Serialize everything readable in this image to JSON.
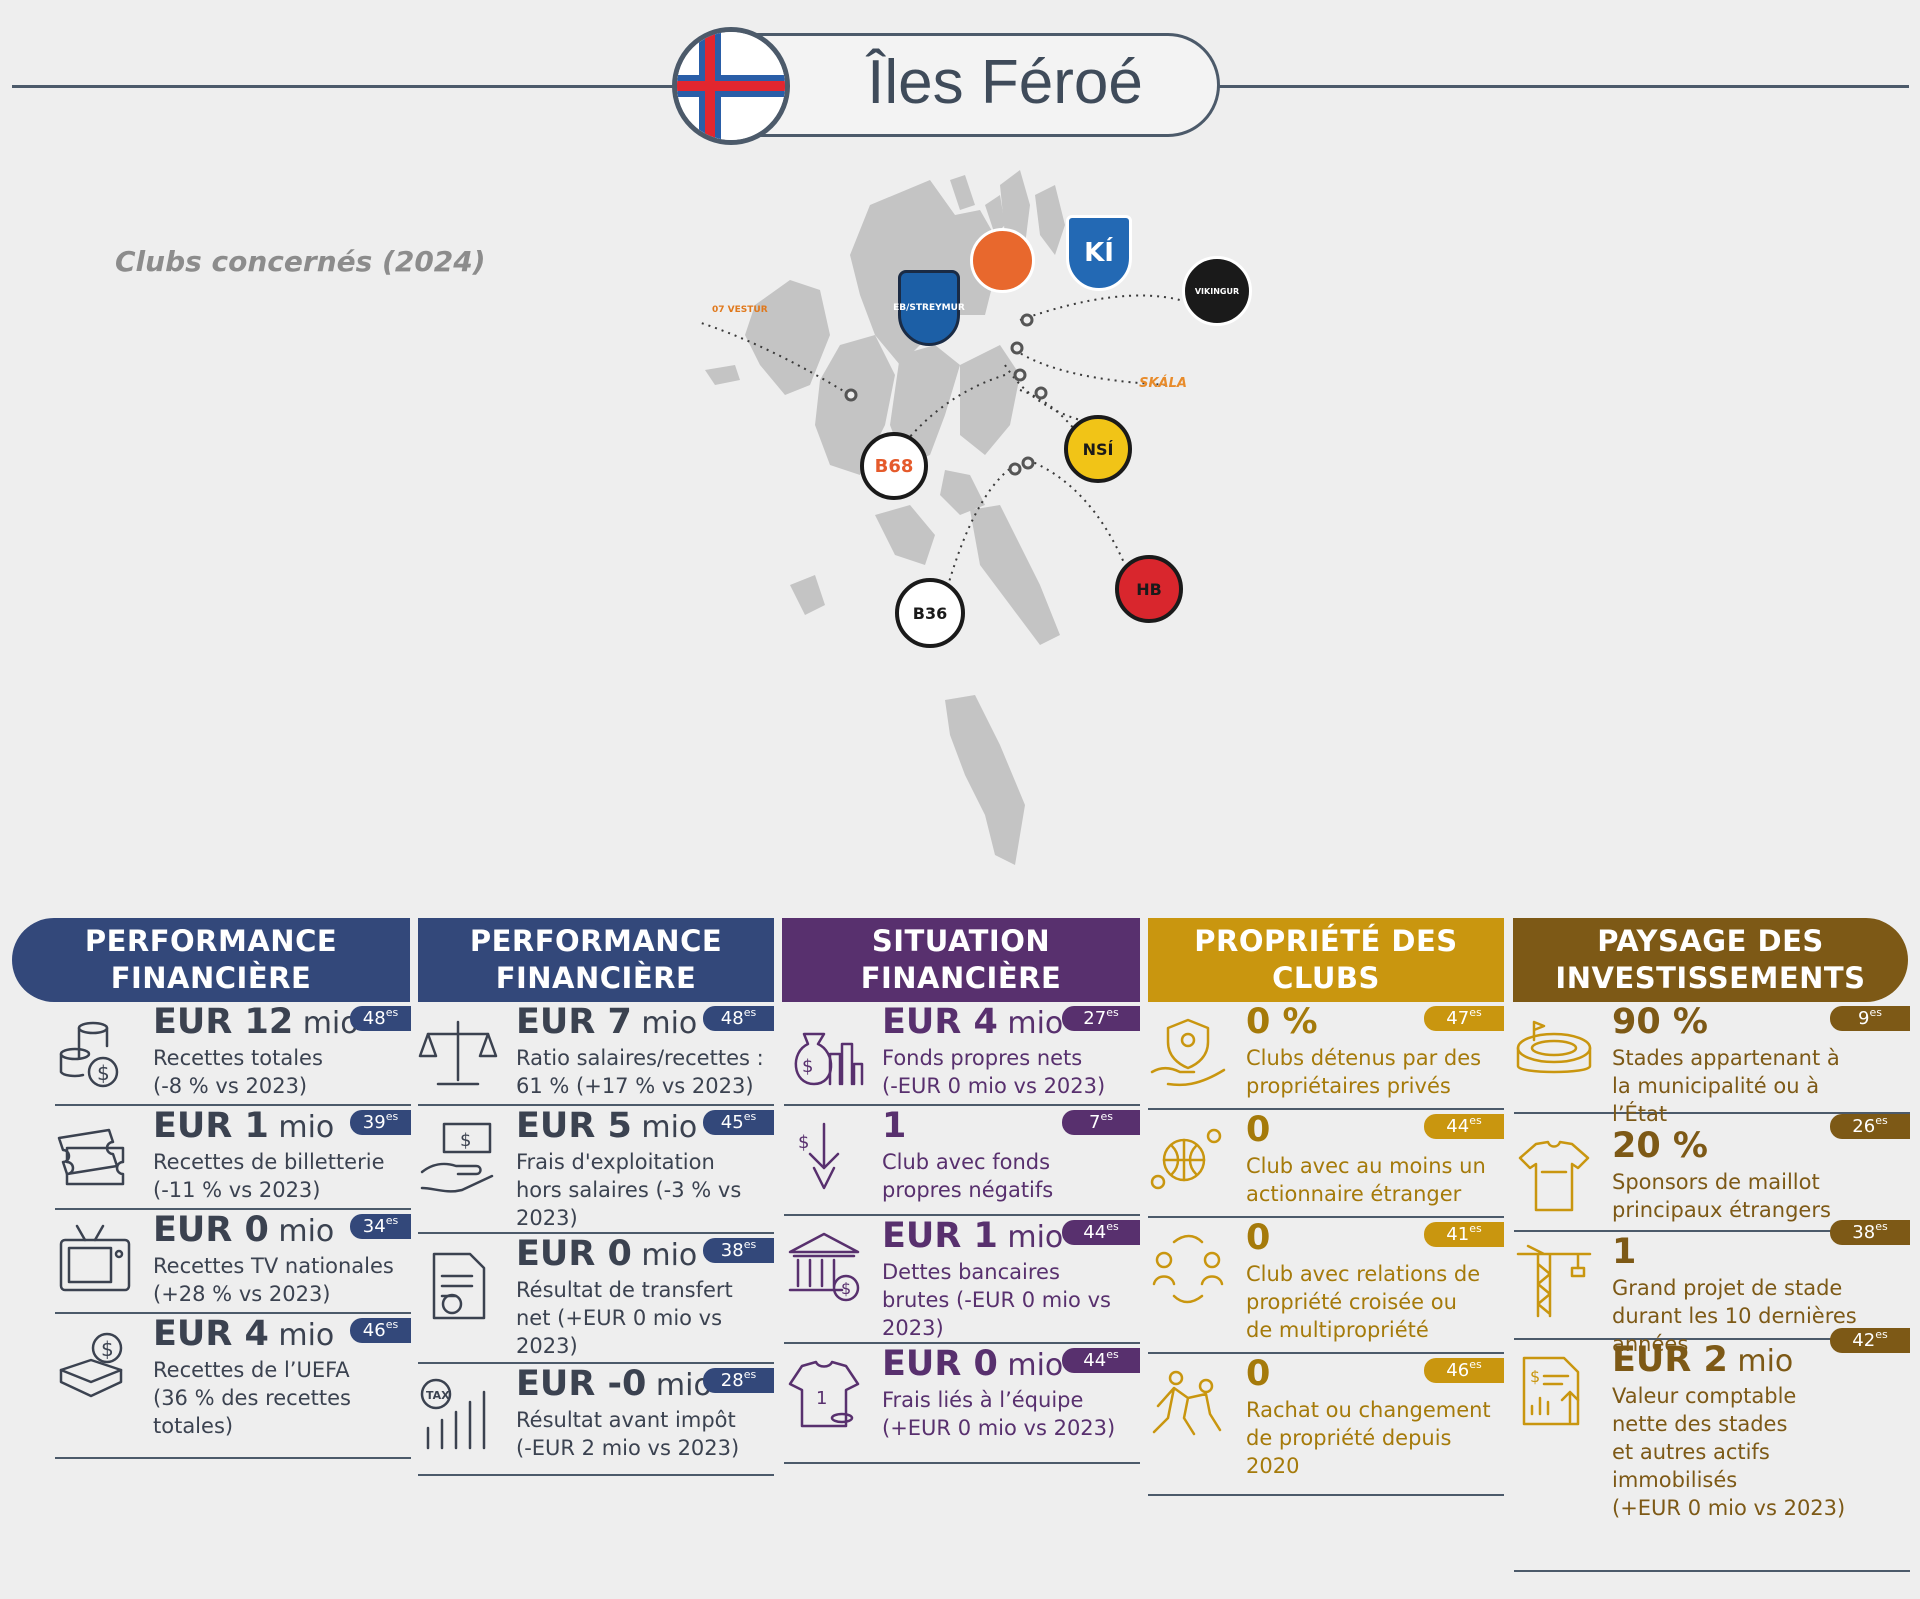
{
  "title": "Îles Féroé",
  "clubs_label": "Clubs concernés (2024)",
  "clubs": {
    "eb": "EB/STREYMUR",
    "ki": "KÍ",
    "vikingur": "VIKINGUR",
    "vestur": "07 VESTUR",
    "skala": "SKÁLA",
    "b68": "B68",
    "nsi": "NSÍ",
    "b36": "B36",
    "hb": "HB"
  },
  "colors": {
    "navy": "#33487a",
    "purple": "#58306e",
    "gold": "#c9960f",
    "brown": "#7d5916",
    "text": "#3b4250"
  },
  "columns": [
    {
      "header": [
        "PERFORMANCE",
        "FINANCIÈRE"
      ],
      "items": [
        {
          "icon": "coins-money-icon",
          "value": "EUR 12",
          "unit": " mio",
          "desc": [
            "Recettes totales",
            "(-8 % vs 2023)"
          ],
          "rank": "48",
          "sup": "es"
        },
        {
          "icon": "tickets-icon",
          "value": "EUR 1",
          "unit": " mio",
          "desc": [
            "Recettes de billetterie",
            "(-11 % vs 2023)"
          ],
          "rank": "39",
          "sup": "es"
        },
        {
          "icon": "television-icon",
          "value": "EUR 0",
          "unit": " mio",
          "desc": [
            "Recettes TV nationales",
            "(+28 % vs 2023)"
          ],
          "rank": "34",
          "sup": "es"
        },
        {
          "icon": "uefa-revenue-icon",
          "value": "EUR 4",
          "unit": " mio",
          "desc": [
            "Recettes de l’UEFA",
            "(36 % des recettes",
            "totales)"
          ],
          "rank": "46",
          "sup": "es"
        }
      ]
    },
    {
      "header": [
        "PERFORMANCE",
        "FINANCIÈRE"
      ],
      "items": [
        {
          "icon": "scale-icon",
          "value": "EUR 7",
          "unit": " mio",
          "desc": [
            "Ratio salaires/recettes :",
            "61 % (+17 % vs 2023)"
          ],
          "rank": "48",
          "sup": "es"
        },
        {
          "icon": "hand-money-icon",
          "value": "EUR 5",
          "unit": " mio",
          "desc": [
            "Frais d'exploitation",
            "hors salaires (-3 % vs",
            "2023)"
          ],
          "rank": "45",
          "sup": "es"
        },
        {
          "icon": "transfer-document-icon",
          "value": "EUR 0",
          "unit": " mio",
          "desc": [
            "Résultat de transfert",
            "net (+EUR 0 mio vs",
            "2023)"
          ],
          "rank": "38",
          "sup": "es"
        },
        {
          "icon": "tax-chart-icon",
          "value": "EUR -0",
          "unit": " mio",
          "desc": [
            "Résultat avant impôt",
            "(-EUR 2 mio vs 2023)"
          ],
          "rank": "28",
          "sup": "es"
        }
      ]
    },
    {
      "header": [
        "SITUATION",
        "FINANCIÈRE"
      ],
      "items": [
        {
          "icon": "money-bag-chart-icon",
          "value": "EUR 4",
          "unit": " mio",
          "desc": [
            "Fonds propres nets",
            "(-EUR 0 mio vs 2023)"
          ],
          "rank": "27",
          "sup": "es"
        },
        {
          "icon": "negative-equity-icon",
          "value": "1",
          "unit": "",
          "desc": [
            "Club avec fonds",
            "propres négatifs"
          ],
          "rank": "7",
          "sup": "es"
        },
        {
          "icon": "bank-icon",
          "value": "EUR 1",
          "unit": " mio",
          "desc": [
            "Dettes bancaires",
            "brutes (-EUR 0 mio vs",
            "2023)"
          ],
          "rank": "44",
          "sup": "es"
        },
        {
          "icon": "shirt-coins-icon",
          "value": "EUR 0",
          "unit": " mio",
          "desc": [
            "Frais liés à l’équipe",
            "(+EUR 0 mio vs 2023)"
          ],
          "rank": "44",
          "sup": "es"
        }
      ]
    },
    {
      "header": [
        "PROPRIÉTÉ DES",
        "CLUBS"
      ],
      "items": [
        {
          "icon": "private-ownership-icon",
          "value": "0 %",
          "unit": "",
          "desc": [
            "Clubs détenus par des",
            "propriétaires privés"
          ],
          "rank": "47",
          "sup": "es"
        },
        {
          "icon": "foreign-shareholder-icon",
          "value": "0",
          "unit": "",
          "desc": [
            "Club avec au moins un",
            "actionnaire étranger"
          ],
          "rank": "44",
          "sup": "es"
        },
        {
          "icon": "cross-ownership-icon",
          "value": "0",
          "unit": "",
          "desc": [
            "Club avec relations de",
            "propriété croisée ou",
            "de multipropriété"
          ],
          "rank": "41",
          "sup": "es"
        },
        {
          "icon": "ownership-change-icon",
          "value": "0",
          "unit": "",
          "desc": [
            "Rachat ou changement",
            "de propriété depuis",
            "2020"
          ],
          "rank": "46",
          "sup": "es"
        }
      ]
    },
    {
      "header": [
        "PAYSAGE DES",
        "INVESTISSEMENTS"
      ],
      "items": [
        {
          "icon": "stadium-icon",
          "value": "90 %",
          "unit": "",
          "desc": [
            "Stades appartenant à",
            "la municipalité ou à",
            "l’État"
          ],
          "rank": "9",
          "sup": "es"
        },
        {
          "icon": "jersey-icon",
          "value": "20 %",
          "unit": "",
          "desc": [
            "Sponsors de maillot",
            "principaux étrangers"
          ],
          "rank": "26",
          "sup": "es"
        },
        {
          "icon": "crane-icon",
          "value": "1",
          "unit": "",
          "desc": [
            "Grand projet de stade",
            "durant les 10 dernières",
            "années"
          ],
          "rank": "38",
          "sup": "es"
        },
        {
          "icon": "asset-document-icon",
          "value": "EUR 2",
          "unit": " mio",
          "desc": [
            "Valeur comptable",
            "nette des stades",
            "et autres actifs",
            "immobilisés",
            "(+EUR 0 mio vs 2023)"
          ],
          "rank": "42",
          "sup": "es"
        }
      ]
    }
  ]
}
